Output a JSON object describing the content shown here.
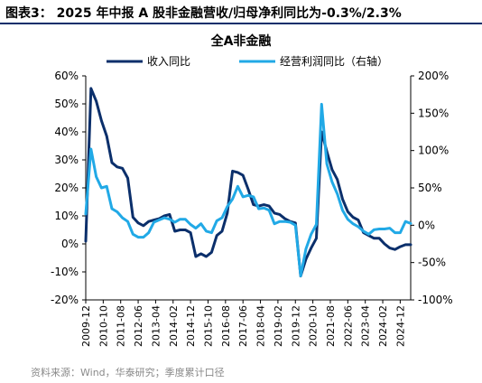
{
  "figure_title": "图表3： 2025 年中报 A 股非金融营收/归母净利同比为-0.3%/2.3%",
  "source": "资料来源：Wind，华泰研究；季度累计口径",
  "colors": {
    "navy": "#0b2f6b",
    "cyan": "#21a9e6",
    "axis": "#000000",
    "text": "#000000",
    "source": "#8a8a8a"
  },
  "chart_data": {
    "type": "line",
    "title": "全A非金融",
    "legend_position": "top",
    "grid": false,
    "x_tick_labels": [
      "2009-12",
      "2010-10",
      "2011-08",
      "2012-06",
      "2013-04",
      "2014-02",
      "2014-12",
      "2015-10",
      "2016-08",
      "2017-06",
      "2018-04",
      "2019-02",
      "2019-12",
      "2020-10",
      "2021-08",
      "2022-06",
      "2023-04",
      "2024-02",
      "2024-12"
    ],
    "x_tick_dates": [
      "2009-12",
      "2010-10",
      "2011-08",
      "2012-06",
      "2013-04",
      "2014-02",
      "2014-12",
      "2015-10",
      "2016-08",
      "2017-06",
      "2018-04",
      "2019-02",
      "2019-12",
      "2020-10",
      "2021-08",
      "2022-06",
      "2023-04",
      "2024-02",
      "2024-12"
    ],
    "x_range": [
      "2009-12",
      "2025-06"
    ],
    "left_axis": {
      "min": -0.2,
      "max": 0.6,
      "ticks": [
        -0.2,
        -0.1,
        0.0,
        0.1,
        0.2,
        0.3,
        0.4,
        0.5,
        0.6
      ],
      "tick_labels": [
        "-20%",
        "-10%",
        "0%",
        "10%",
        "20%",
        "30%",
        "40%",
        "50%",
        "60%"
      ]
    },
    "right_axis": {
      "min": -1.0,
      "max": 2.0,
      "ticks": [
        -1.0,
        -0.5,
        0.0,
        0.5,
        1.0,
        1.5,
        2.0
      ],
      "tick_labels": [
        "-100%",
        "-50%",
        "0%",
        "50%",
        "100%",
        "150%",
        "200%"
      ]
    },
    "series": [
      {
        "name": "收入同比",
        "axis": "left",
        "color": "#0b2f6b",
        "points": [
          [
            "2009-12",
            0.01
          ],
          [
            "2010-03",
            0.555
          ],
          [
            "2010-06",
            0.51
          ],
          [
            "2010-09",
            0.44
          ],
          [
            "2010-12",
            0.385
          ],
          [
            "2011-03",
            0.29
          ],
          [
            "2011-06",
            0.275
          ],
          [
            "2011-09",
            0.27
          ],
          [
            "2011-12",
            0.235
          ],
          [
            "2012-03",
            0.095
          ],
          [
            "2012-06",
            0.075
          ],
          [
            "2012-09",
            0.065
          ],
          [
            "2012-12",
            0.08
          ],
          [
            "2013-03",
            0.085
          ],
          [
            "2013-06",
            0.09
          ],
          [
            "2013-09",
            0.1
          ],
          [
            "2013-12",
            0.105
          ],
          [
            "2014-03",
            0.045
          ],
          [
            "2014-06",
            0.05
          ],
          [
            "2014-09",
            0.05
          ],
          [
            "2014-12",
            0.04
          ],
          [
            "2015-03",
            -0.045
          ],
          [
            "2015-06",
            -0.035
          ],
          [
            "2015-09",
            -0.045
          ],
          [
            "2015-12",
            -0.03
          ],
          [
            "2016-03",
            0.03
          ],
          [
            "2016-06",
            0.045
          ],
          [
            "2016-09",
            0.11
          ],
          [
            "2016-12",
            0.26
          ],
          [
            "2017-03",
            0.255
          ],
          [
            "2017-06",
            0.245
          ],
          [
            "2017-09",
            0.195
          ],
          [
            "2017-12",
            0.14
          ],
          [
            "2018-03",
            0.135
          ],
          [
            "2018-06",
            0.14
          ],
          [
            "2018-09",
            0.135
          ],
          [
            "2018-12",
            0.11
          ],
          [
            "2019-03",
            0.105
          ],
          [
            "2019-06",
            0.09
          ],
          [
            "2019-09",
            0.08
          ],
          [
            "2019-12",
            0.075
          ],
          [
            "2020-03",
            -0.115
          ],
          [
            "2020-06",
            -0.055
          ],
          [
            "2020-09",
            -0.015
          ],
          [
            "2020-12",
            0.02
          ],
          [
            "2021-03",
            0.4
          ],
          [
            "2021-06",
            0.33
          ],
          [
            "2021-09",
            0.265
          ],
          [
            "2021-12",
            0.23
          ],
          [
            "2022-03",
            0.16
          ],
          [
            "2022-06",
            0.115
          ],
          [
            "2022-09",
            0.095
          ],
          [
            "2022-12",
            0.085
          ],
          [
            "2023-03",
            0.04
          ],
          [
            "2023-06",
            0.03
          ],
          [
            "2023-09",
            0.02
          ],
          [
            "2023-12",
            0.02
          ],
          [
            "2024-03",
            0.0
          ],
          [
            "2024-06",
            -0.015
          ],
          [
            "2024-09",
            -0.02
          ],
          [
            "2024-12",
            -0.01
          ],
          [
            "2025-03",
            -0.003
          ],
          [
            "2025-06",
            -0.003
          ]
        ]
      },
      {
        "name": "经营利润同比（右轴）",
        "axis": "right",
        "color": "#21a9e6",
        "points": [
          [
            "2009-12",
            0.15
          ],
          [
            "2010-03",
            1.02
          ],
          [
            "2010-06",
            0.65
          ],
          [
            "2010-09",
            0.5
          ],
          [
            "2010-12",
            0.52
          ],
          [
            "2011-03",
            0.22
          ],
          [
            "2011-06",
            0.18
          ],
          [
            "2011-09",
            0.1
          ],
          [
            "2011-12",
            0.05
          ],
          [
            "2012-03",
            -0.12
          ],
          [
            "2012-06",
            -0.16
          ],
          [
            "2012-09",
            -0.16
          ],
          [
            "2012-12",
            -0.1
          ],
          [
            "2013-03",
            0.04
          ],
          [
            "2013-06",
            0.07
          ],
          [
            "2013-09",
            0.1
          ],
          [
            "2013-12",
            0.08
          ],
          [
            "2014-03",
            0.04
          ],
          [
            "2014-06",
            0.08
          ],
          [
            "2014-09",
            0.08
          ],
          [
            "2014-12",
            0.01
          ],
          [
            "2015-03",
            -0.04
          ],
          [
            "2015-06",
            0.02
          ],
          [
            "2015-09",
            -0.08
          ],
          [
            "2015-12",
            -0.1
          ],
          [
            "2016-03",
            0.06
          ],
          [
            "2016-06",
            0.1
          ],
          [
            "2016-09",
            0.25
          ],
          [
            "2016-12",
            0.35
          ],
          [
            "2017-03",
            0.52
          ],
          [
            "2017-06",
            0.38
          ],
          [
            "2017-09",
            0.4
          ],
          [
            "2017-12",
            0.38
          ],
          [
            "2018-03",
            0.22
          ],
          [
            "2018-06",
            0.23
          ],
          [
            "2018-09",
            0.2
          ],
          [
            "2018-12",
            0.02
          ],
          [
            "2019-03",
            0.05
          ],
          [
            "2019-06",
            0.05
          ],
          [
            "2019-09",
            0.04
          ],
          [
            "2019-12",
            0.0
          ],
          [
            "2020-03",
            -0.68
          ],
          [
            "2020-06",
            -0.32
          ],
          [
            "2020-09",
            -0.12
          ],
          [
            "2020-12",
            0.01
          ],
          [
            "2021-03",
            1.62
          ],
          [
            "2021-06",
            0.82
          ],
          [
            "2021-09",
            0.58
          ],
          [
            "2021-12",
            0.42
          ],
          [
            "2022-03",
            0.2
          ],
          [
            "2022-06",
            0.08
          ],
          [
            "2022-09",
            0.02
          ],
          [
            "2022-12",
            -0.02
          ],
          [
            "2023-03",
            -0.08
          ],
          [
            "2023-06",
            -0.12
          ],
          [
            "2023-09",
            -0.06
          ],
          [
            "2023-12",
            -0.05
          ],
          [
            "2024-03",
            -0.05
          ],
          [
            "2024-06",
            -0.04
          ],
          [
            "2024-09",
            -0.1
          ],
          [
            "2024-12",
            -0.1
          ],
          [
            "2025-03",
            0.05
          ],
          [
            "2025-06",
            0.023
          ]
        ]
      }
    ]
  }
}
